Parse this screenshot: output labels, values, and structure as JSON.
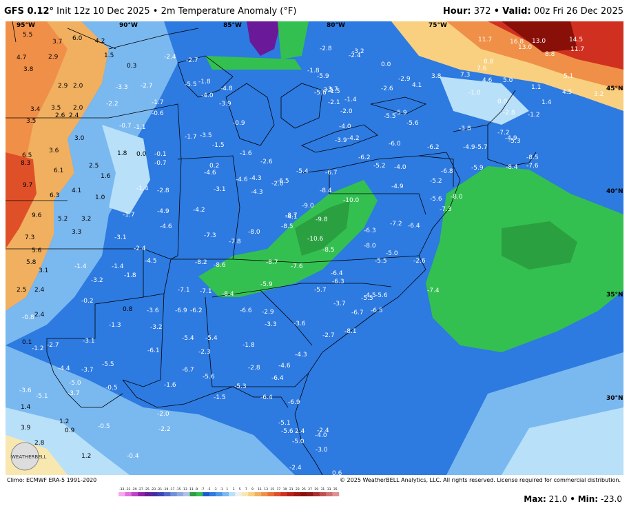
{
  "header": {
    "model": "GFS 0.12",
    "degree": "°",
    "init": "Init 12z 10 Dec 2025",
    "sep": "•",
    "product": "2m Temperature Anomaly (°F)",
    "hour_label": "Hour:",
    "hour_value": "372",
    "valid_label": "Valid:",
    "valid_value": "00z Fri 26 Dec 2025"
  },
  "coords": [
    "95°W",
    "90°W",
    "85°W",
    "80°W",
    "75°W",
    "45°N",
    "40°N",
    "35°N",
    "30°N"
  ],
  "footer": {
    "climo": "Climo: ECMWF ERA-5 1991-2020",
    "copyright": "© 2025 WeatherBELL Analytics, LLC. All rights reserved. License required for commercial distribution.",
    "max_label": "Max:",
    "max_value": "21.0",
    "min_label": "Min:",
    "min_value": "-23.0",
    "logo_text": "WEATHERBELL"
  },
  "colorbar": {
    "ticks": [
      "-33",
      "-31",
      "-29",
      "-27",
      "-25",
      "-23",
      "-21",
      "-19",
      "-17",
      "-15",
      "-13",
      "-11",
      "-9",
      "-7",
      "-5",
      "-3",
      "-1",
      "1",
      "3",
      "5",
      "7",
      "9",
      "11",
      "13",
      "15",
      "17",
      "19",
      "21",
      "23",
      "25",
      "27",
      "29",
      "31",
      "33",
      "35"
    ],
    "colors": [
      "#f7a8f0",
      "#e070e0",
      "#c040c8",
      "#9020a8",
      "#6a1a98",
      "#4a2aa0",
      "#3c44b8",
      "#5068c8",
      "#7090d8",
      "#90a8e0",
      "#b0c0e8",
      "#2aa040",
      "#34c050",
      "#1c5ad0",
      "#2d7ae0",
      "#4a98e8",
      "#7ab8f0",
      "#b8e0f8",
      "#f0f0f0",
      "#f8e8b0",
      "#f8d080",
      "#f0b060",
      "#f09048",
      "#e87038",
      "#e05028",
      "#d03020",
      "#b82018",
      "#a01810",
      "#881008",
      "#901818",
      "#a83030",
      "#c05050",
      "#d07070",
      "#e09090"
    ]
  },
  "anomalies": [
    {
      "t": "5.5"
    },
    {
      "t": "3.7"
    },
    {
      "t": "6.0"
    },
    {
      "t": "4.2"
    },
    {
      "t": "4.7"
    },
    {
      "t": "2.9"
    },
    {
      "t": "1.5"
    },
    {
      "t": "3.8"
    },
    {
      "t": "0.3"
    },
    {
      "t": "2.9"
    },
    {
      "t": "2.0"
    },
    {
      "t": "-3.3"
    },
    {
      "t": "-2.7"
    },
    {
      "t": "-2.2"
    },
    {
      "t": "3.4"
    },
    {
      "t": "3.5"
    },
    {
      "t": "2.0"
    },
    {
      "t": "2.6"
    },
    {
      "t": "2.4"
    },
    {
      "t": "3.5"
    },
    {
      "t": "-0.7"
    },
    {
      "t": "-1.1"
    },
    {
      "t": "3.0"
    },
    {
      "t": "3.6"
    },
    {
      "t": "1.8"
    },
    {
      "t": "0.0"
    },
    {
      "t": "-0.1"
    },
    {
      "t": "6.5"
    },
    {
      "t": "8.3"
    },
    {
      "t": "6.1"
    },
    {
      "t": "2.5"
    },
    {
      "t": "-0.7"
    },
    {
      "t": "1.6"
    },
    {
      "t": "9.7"
    },
    {
      "t": "4.1"
    },
    {
      "t": "6.3"
    },
    {
      "t": "1.0"
    },
    {
      "t": "-1.4"
    },
    {
      "t": "-2.8"
    },
    {
      "t": "9.6"
    },
    {
      "t": "5.2"
    },
    {
      "t": "3.2"
    },
    {
      "t": "3.3"
    },
    {
      "t": "-1.7"
    },
    {
      "t": "7.3"
    },
    {
      "t": "-3.1"
    },
    {
      "t": "5.6"
    },
    {
      "t": "-2.4"
    },
    {
      "t": "5.8"
    },
    {
      "t": "3.1"
    },
    {
      "t": "-1.4"
    },
    {
      "t": "-1.4"
    },
    {
      "t": "-1.8"
    },
    {
      "t": "-3.2"
    },
    {
      "t": "2.5"
    },
    {
      "t": "2.4"
    },
    {
      "t": "-0.2"
    },
    {
      "t": "-0.8"
    },
    {
      "t": "2.4"
    },
    {
      "t": "0.8"
    },
    {
      "t": "-1.3"
    },
    {
      "t": "0.1"
    },
    {
      "t": "-1.2"
    },
    {
      "t": "-2.7"
    },
    {
      "t": "-3.1"
    },
    {
      "t": "-5.5"
    },
    {
      "t": "-4.4"
    },
    {
      "t": "-3.7"
    },
    {
      "t": "-5.0"
    },
    {
      "t": "-3.6"
    },
    {
      "t": "-5.1"
    },
    {
      "t": "-3.7"
    },
    {
      "t": "-0.5"
    },
    {
      "t": "1.4"
    },
    {
      "t": "1.2"
    },
    {
      "t": "0.9"
    },
    {
      "t": "-0.5"
    },
    {
      "t": "3.9"
    },
    {
      "t": "2.8"
    },
    {
      "t": "1.2"
    },
    {
      "t": "-0.4"
    },
    {
      "t": "-2.4"
    },
    {
      "t": "-2.7"
    },
    {
      "t": "-1.8"
    },
    {
      "t": "-4.0"
    },
    {
      "t": "-4.8"
    },
    {
      "t": "-3.9"
    },
    {
      "t": "-1.7"
    },
    {
      "t": "-0.6"
    },
    {
      "t": "-0.9"
    },
    {
      "t": "-1.7"
    },
    {
      "t": "-3.5"
    },
    {
      "t": "-1.5"
    },
    {
      "t": "0.2"
    },
    {
      "t": "-3.1"
    },
    {
      "t": "-1.6"
    },
    {
      "t": "-4.6"
    },
    {
      "t": "-4.9"
    },
    {
      "t": "-4.2"
    },
    {
      "t": "-4.6"
    },
    {
      "t": "-7.3"
    },
    {
      "t": "-4.5"
    },
    {
      "t": "-8.2"
    },
    {
      "t": "-8.6"
    },
    {
      "t": "-7.8"
    },
    {
      "t": "-8.0"
    },
    {
      "t": "-7.1"
    },
    {
      "t": "-7.1"
    },
    {
      "t": "-8.4"
    },
    {
      "t": "-3.6"
    },
    {
      "t": "-3.2"
    },
    {
      "t": "-6.9"
    },
    {
      "t": "-6.2"
    },
    {
      "t": "-5.4"
    },
    {
      "t": "-5.4"
    },
    {
      "t": "-6.1"
    },
    {
      "t": "-2.3"
    },
    {
      "t": "-6.7"
    },
    {
      "t": "-5.6"
    },
    {
      "t": "-1.6"
    },
    {
      "t": "-1.5"
    },
    {
      "t": "-5.3"
    },
    {
      "t": "-6.4"
    },
    {
      "t": "-6.9"
    },
    {
      "t": "-2.0"
    },
    {
      "t": "-2.2"
    },
    {
      "t": "-4.6"
    },
    {
      "t": "-4.3"
    },
    {
      "t": "-6.5"
    },
    {
      "t": "-4.3"
    },
    {
      "t": "-5.4"
    },
    {
      "t": "-6.7"
    },
    {
      "t": "-8.4"
    },
    {
      "t": "-9.0"
    },
    {
      "t": "-8.7"
    },
    {
      "t": "-9.8"
    },
    {
      "t": "-8.5"
    },
    {
      "t": "-10.6"
    },
    {
      "t": "-8.5"
    },
    {
      "t": "-8.7"
    },
    {
      "t": "-7.6"
    },
    {
      "t": "-5.9"
    },
    {
      "t": "-6.4"
    },
    {
      "t": "-6.3"
    },
    {
      "t": "-6.6"
    },
    {
      "t": "-2.9"
    },
    {
      "t": "-3.3"
    },
    {
      "t": "-1.8"
    },
    {
      "t": "-2.8"
    },
    {
      "t": "-4.6"
    },
    {
      "t": "-6.4"
    },
    {
      "t": "-4.3"
    },
    {
      "t": "-3.6"
    },
    {
      "t": "-5.7"
    },
    {
      "t": "-3.7"
    },
    {
      "t": "-4.5"
    },
    {
      "t": "-5.6"
    },
    {
      "t": "-6.7"
    },
    {
      "t": "-6.5"
    },
    {
      "t": "-8.1"
    },
    {
      "t": "-5.5"
    },
    {
      "t": "-5.1"
    },
    {
      "t": "-5.6"
    },
    {
      "t": "-5.0"
    },
    {
      "t": "-4.0"
    },
    {
      "t": "-3.0"
    },
    {
      "t": "-2.4"
    },
    {
      "t": "0.6"
    },
    {
      "t": "-2.4"
    },
    {
      "t": "2.4"
    },
    {
      "t": "-2.7"
    },
    {
      "t": "-2.8"
    },
    {
      "t": "-1.8"
    },
    {
      "t": "-5.5"
    },
    {
      "t": "-3.7"
    },
    {
      "t": "-2.6"
    },
    {
      "t": "-2.0"
    },
    {
      "t": "-4.1"
    },
    {
      "t": "-1.5"
    },
    {
      "t": "-1.4"
    },
    {
      "t": "-5.9"
    },
    {
      "t": "-5.6"
    },
    {
      "t": "-3.5"
    },
    {
      "t": "-2.1"
    },
    {
      "t": "-2.0"
    },
    {
      "t": "-4.0"
    },
    {
      "t": "-3.9"
    },
    {
      "t": "-4.2"
    },
    {
      "t": "-2.4"
    },
    {
      "t": "-3.2"
    },
    {
      "t": "0.0"
    },
    {
      "t": "-2.9"
    },
    {
      "t": "-2.6"
    },
    {
      "t": "4.1"
    },
    {
      "t": "-5.5"
    },
    {
      "t": "-5.9"
    },
    {
      "t": "-5.6"
    },
    {
      "t": "-6.0"
    },
    {
      "t": "-6.2"
    },
    {
      "t": "-6.2"
    },
    {
      "t": "-5.2"
    },
    {
      "t": "-4.0"
    },
    {
      "t": "-4.9"
    },
    {
      "t": "-5.2"
    },
    {
      "t": "-6.8"
    },
    {
      "t": "-10.0"
    },
    {
      "t": "-6.3"
    },
    {
      "t": "-8.0"
    },
    {
      "t": "-7.2"
    },
    {
      "t": "-6.4"
    },
    {
      "t": "-5.6"
    },
    {
      "t": "-7.3"
    },
    {
      "t": "-8.0"
    },
    {
      "t": "-5.0"
    },
    {
      "t": "-2.6"
    },
    {
      "t": "-5.5"
    },
    {
      "t": "-7.4"
    },
    {
      "t": "-3.8"
    },
    {
      "t": "-4.9"
    },
    {
      "t": "-5.7"
    },
    {
      "t": "-5.9"
    },
    {
      "t": "-7.2"
    },
    {
      "t": "-4.9"
    },
    {
      "t": "-5.3"
    },
    {
      "t": "-8.4"
    },
    {
      "t": "-8.5"
    },
    {
      "t": "-7.6"
    },
    {
      "t": "-1.0"
    },
    {
      "t": "0.0"
    },
    {
      "t": "-2.8"
    },
    {
      "t": "-1.2"
    },
    {
      "t": "3.8"
    },
    {
      "t": "7.3"
    },
    {
      "t": "7.6"
    },
    {
      "t": "4.6"
    },
    {
      "t": "5.0"
    },
    {
      "t": "8.8"
    },
    {
      "t": "1.1"
    },
    {
      "t": "1.4"
    },
    {
      "t": "4.5"
    },
    {
      "t": "5.1"
    },
    {
      "t": "8.8"
    },
    {
      "t": "11.7"
    },
    {
      "t": "16.8"
    },
    {
      "t": "13.0"
    },
    {
      "t": "13.0"
    },
    {
      "t": "14.5"
    },
    {
      "t": "11.7"
    },
    {
      "t": "3.2"
    }
  ]
}
